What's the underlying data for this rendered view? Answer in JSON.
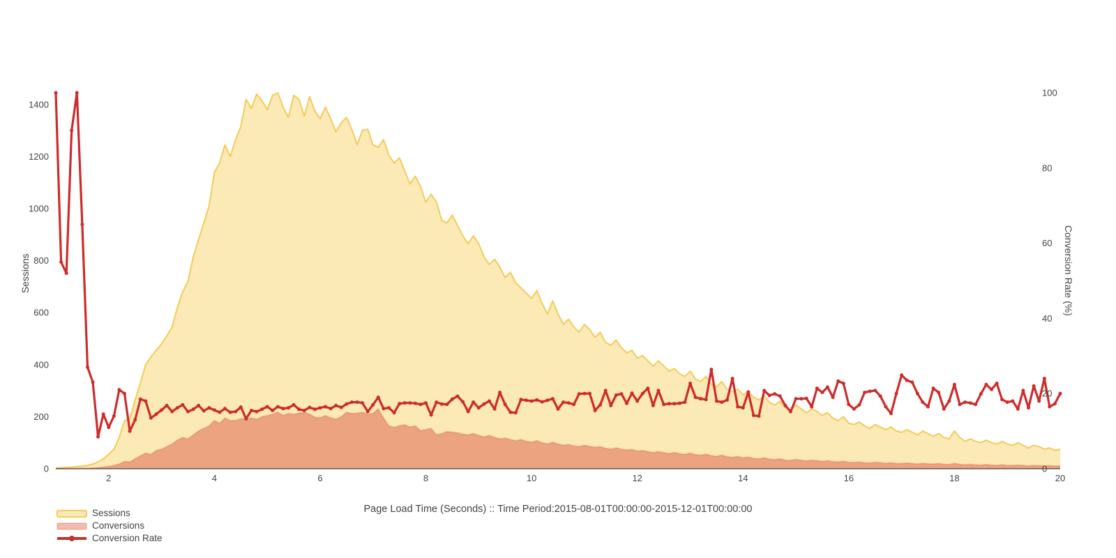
{
  "style": {
    "background": "#FFFFFF",
    "axis_text_color": "#444444",
    "axis_line_color": "#444444"
  },
  "chart_data": {
    "type": "area",
    "title": "",
    "xlabel": "Page Load Time (Seconds) :: Time Period:2015-08-01T00:00:00-2015-12-01T00:00:00",
    "ylabel_left": "Sessions",
    "ylabel_right": "Conversion Rate (%)",
    "x_range": [
      1,
      20
    ],
    "y_left_range": [
      0,
      1466
    ],
    "y_right_range": [
      0,
      100
    ],
    "x_ticks": [
      2,
      4,
      6,
      8,
      10,
      12,
      14,
      16,
      18,
      20
    ],
    "y_left_ticks": [
      0,
      200,
      400,
      600,
      800,
      1000,
      1200,
      1400
    ],
    "y_right_ticks": [
      0,
      20,
      40,
      60,
      80,
      100
    ],
    "grid": false,
    "legend_position": "bottom-left",
    "x": [
      1.0,
      1.1,
      1.2,
      1.3,
      1.4,
      1.5,
      1.6,
      1.7,
      1.8,
      1.9,
      2.0,
      2.1,
      2.2,
      2.3,
      2.4,
      2.5,
      2.6,
      2.7,
      2.8,
      2.9,
      3.0,
      3.1,
      3.2,
      3.3,
      3.4,
      3.5,
      3.6,
      3.7,
      3.8,
      3.9,
      4.0,
      4.1,
      4.2,
      4.3,
      4.4,
      4.5,
      4.6,
      4.7,
      4.8,
      4.9,
      5.0,
      5.1,
      5.2,
      5.3,
      5.4,
      5.5,
      5.6,
      5.7,
      5.8,
      5.9,
      6.0,
      6.1,
      6.2,
      6.3,
      6.4,
      6.5,
      6.6,
      6.7,
      6.8,
      6.9,
      7.0,
      7.1,
      7.2,
      7.3,
      7.4,
      7.5,
      7.6,
      7.7,
      7.8,
      7.9,
      8.0,
      8.1,
      8.2,
      8.3,
      8.4,
      8.5,
      8.6,
      8.7,
      8.8,
      8.9,
      9.0,
      9.1,
      9.2,
      9.3,
      9.4,
      9.5,
      9.6,
      9.7,
      9.8,
      9.9,
      10.0,
      10.1,
      10.2,
      10.3,
      10.4,
      10.5,
      10.6,
      10.7,
      10.8,
      10.9,
      11.0,
      11.1,
      11.2,
      11.3,
      11.4,
      11.5,
      11.6,
      11.7,
      11.8,
      11.9,
      12.0,
      12.1,
      12.2,
      12.3,
      12.4,
      12.5,
      12.6,
      12.7,
      12.8,
      12.9,
      13.0,
      13.1,
      13.2,
      13.3,
      13.4,
      13.5,
      13.6,
      13.7,
      13.8,
      13.9,
      14.0,
      14.1,
      14.2,
      14.3,
      14.4,
      14.5,
      14.6,
      14.7,
      14.8,
      14.9,
      15.0,
      15.1,
      15.2,
      15.3,
      15.4,
      15.5,
      15.6,
      15.7,
      15.8,
      15.9,
      16.0,
      16.1,
      16.2,
      16.3,
      16.4,
      16.5,
      16.6,
      16.7,
      16.8,
      16.9,
      17.0,
      17.1,
      17.2,
      17.3,
      17.4,
      17.5,
      17.6,
      17.7,
      17.8,
      17.9,
      18.0,
      18.1,
      18.2,
      18.3,
      18.4,
      18.5,
      18.6,
      18.7,
      18.8,
      18.9,
      19.0,
      19.1,
      19.2,
      19.3,
      19.4,
      19.5,
      19.6,
      19.7,
      19.8,
      19.9,
      20.0
    ],
    "series": [
      {
        "name": "Sessions",
        "type": "area",
        "axis": "left",
        "fill": "#FBE9B6",
        "line": "#F5CB5A",
        "values": [
          3,
          4,
          5,
          6,
          8,
          10,
          13,
          18,
          26,
          38,
          55,
          75,
          120,
          185,
          190,
          265,
          330,
          400,
          430,
          455,
          480,
          510,
          545,
          620,
          680,
          720,
          815,
          880,
          945,
          1010,
          1140,
          1175,
          1245,
          1200,
          1265,
          1315,
          1420,
          1385,
          1440,
          1415,
          1380,
          1435,
          1445,
          1390,
          1350,
          1435,
          1420,
          1355,
          1430,
          1375,
          1345,
          1390,
          1345,
          1295,
          1330,
          1350,
          1305,
          1245,
          1300,
          1305,
          1245,
          1235,
          1265,
          1205,
          1175,
          1195,
          1145,
          1095,
          1125,
          1085,
          1025,
          1055,
          1025,
          955,
          945,
          975,
          935,
          895,
          865,
          895,
          865,
          815,
          785,
          805,
          775,
          735,
          755,
          715,
          695,
          675,
          655,
          685,
          635,
          595,
          645,
          595,
          555,
          575,
          545,
          525,
          555,
          535,
          505,
          525,
          485,
          475,
          495,
          465,
          445,
          455,
          425,
          435,
          415,
          395,
          415,
          395,
          375,
          385,
          365,
          355,
          375,
          345,
          335,
          355,
          325,
          315,
          335,
          305,
          295,
          305,
          285,
          295,
          275,
          265,
          280,
          255,
          245,
          260,
          235,
          225,
          245,
          230,
          215,
          230,
          220,
          205,
          215,
          195,
          185,
          200,
          175,
          170,
          180,
          165,
          155,
          170,
          160,
          150,
          160,
          145,
          140,
          150,
          140,
          130,
          145,
          135,
          125,
          135,
          120,
          115,
          145,
          120,
          105,
          115,
          105,
          100,
          110,
          100,
          95,
          105,
          95,
          90,
          100,
          90,
          80,
          90,
          85,
          75,
          80,
          70,
          75
        ]
      },
      {
        "name": "Conversions",
        "type": "area",
        "axis": "left",
        "fill": "rgba(219,95,71,0.5)",
        "line": "rgba(219,95,71,0.3)",
        "values": [
          0,
          0,
          1,
          1,
          1,
          2,
          2,
          3,
          4,
          6,
          9,
          12,
          18,
          28,
          26,
          38,
          50,
          60,
          55,
          70,
          75,
          85,
          95,
          110,
          120,
          115,
          130,
          145,
          155,
          165,
          185,
          175,
          195,
          185,
          186,
          192,
          190,
          195,
          190,
          200,
          204,
          210,
          217,
          205,
          212,
          209,
          214,
          217,
          210,
          198,
          196,
          204,
          196,
          190,
          200,
          217,
          212,
          214,
          217,
          209,
          212,
          230,
          195,
          165,
          159,
          165,
          169,
          160,
          165,
          146,
          151,
          155,
          130,
          135,
          143,
          140,
          138,
          133,
          130,
          135,
          128,
          122,
          128,
          120,
          115,
          118,
          112,
          108,
          112,
          105,
          102,
          108,
          100,
          95,
          102,
          95,
          90,
          93,
          88,
          85,
          90,
          86,
          82,
          85,
          78,
          76,
          80,
          75,
          72,
          74,
          68,
          70,
          66,
          62,
          66,
          62,
          58,
          62,
          58,
          55,
          60,
          54,
          52,
          56,
          50,
          48,
          52,
          46,
          44,
          47,
          42,
          45,
          40,
          38,
          42,
          37,
          35,
          38,
          33,
          32,
          36,
          33,
          30,
          33,
          31,
          28,
          31,
          27,
          26,
          29,
          25,
          24,
          26,
          23,
          22,
          25,
          23,
          21,
          23,
          20,
          20,
          22,
          20,
          18,
          21,
          19,
          18,
          20,
          17,
          16,
          21,
          17,
          15,
          17,
          15,
          14,
          16,
          14,
          13,
          15,
          13,
          13,
          14,
          13,
          11,
          13,
          12,
          11,
          12,
          10,
          11
        ]
      },
      {
        "name": "Conversion Rate",
        "type": "line+markers",
        "axis": "right",
        "fill": "none",
        "line": "#CE2B2B",
        "values": [
          100,
          55,
          52,
          90,
          100,
          65,
          27,
          23,
          8.5,
          14.5,
          11,
          14,
          21,
          20,
          10,
          13,
          18.5,
          18,
          13.5,
          14.5,
          15.6,
          16.8,
          15.2,
          16.2,
          17,
          15.2,
          15.8,
          16.8,
          15.4,
          16.2,
          15.6,
          15,
          16,
          15,
          15.2,
          16.4,
          13.3,
          15.5,
          15.2,
          15.8,
          16.5,
          15.5,
          16.5,
          16,
          16.2,
          17,
          15.8,
          15.5,
          16.3,
          15.8,
          16.2,
          16.5,
          16,
          16.8,
          16.3,
          17.2,
          17.7,
          17.7,
          17.5,
          15.2,
          17,
          19,
          16,
          16.2,
          14.9,
          17.3,
          17.5,
          17.5,
          17.4,
          17.1,
          17.5,
          14.3,
          17.7,
          17.2,
          17.1,
          18.5,
          19.3,
          17.8,
          15.2,
          17.7,
          16.2,
          17.2,
          18,
          15.9,
          20.3,
          17.1,
          15,
          14.9,
          18.4,
          18.2,
          18,
          18.3,
          17.8,
          18.2,
          18.6,
          15.9,
          17.7,
          17.5,
          17.1,
          19.9,
          20,
          20,
          15.5,
          17,
          20.8,
          16.8,
          19.6,
          19.9,
          17.4,
          20.1,
          18,
          20,
          21.4,
          16.8,
          20.8,
          17.1,
          17.3,
          17.3,
          17.4,
          17.7,
          22.7,
          19,
          18.6,
          18.4,
          26.4,
          18,
          17.7,
          18.3,
          24,
          16.5,
          16.2,
          20.4,
          14.2,
          14,
          20.8,
          19.5,
          19.9,
          19.3,
          16.8,
          15.2,
          18.6,
          18.6,
          18.7,
          16.5,
          21.4,
          20.3,
          21.7,
          19,
          23.3,
          22.7,
          17.1,
          15.9,
          17,
          20.3,
          20.6,
          20.8,
          19.3,
          16.5,
          14.7,
          20,
          24.9,
          23.5,
          23,
          20,
          17.7,
          16.5,
          21.4,
          20.3,
          15.9,
          18,
          22.4,
          17.1,
          17.7,
          17.5,
          17.1,
          19.9,
          22.4,
          21.1,
          22.7,
          18.4,
          17.7,
          18,
          15.9,
          20.8,
          16.2,
          22,
          18,
          24,
          16.5,
          17.3,
          20
        ]
      }
    ]
  },
  "legend": {
    "items": [
      {
        "label": "Sessions"
      },
      {
        "label": "Conversions"
      },
      {
        "label": "Conversion Rate"
      }
    ]
  }
}
